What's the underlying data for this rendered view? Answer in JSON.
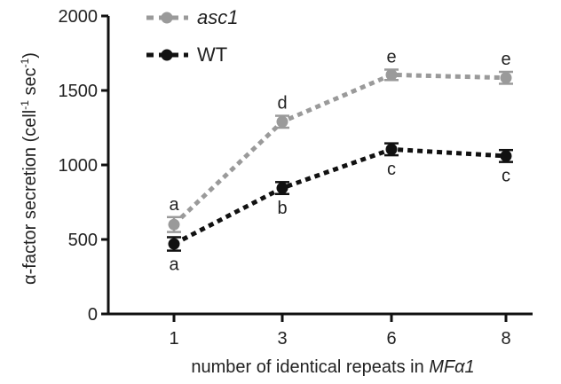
{
  "chart_data": {
    "type": "line",
    "categories": [
      "1",
      "3",
      "6",
      "8"
    ],
    "xlabel_prefix": "number of identical repeats in ",
    "xlabel_italic": "MFα1",
    "ylabel_main": "α-factor secretion (cell",
    "ylabel_sup1": "-1",
    "ylabel_mid": " sec",
    "ylabel_sup2": "-1",
    "ylabel_end": ")",
    "ylim": [
      0,
      2000
    ],
    "yticks": [
      "0",
      "500",
      "1000",
      "1500",
      "2000"
    ],
    "grid": false,
    "legend_position": "top-left",
    "series": [
      {
        "name": "asc1",
        "italic": true,
        "color": "#9a9a9a",
        "values": [
          600,
          1290,
          1605,
          1585
        ],
        "errors": [
          50,
          40,
          35,
          40
        ],
        "letters": [
          "a",
          "d",
          "e",
          "e"
        ],
        "letter_position": [
          "above",
          "above",
          "above",
          "above"
        ]
      },
      {
        "name": "WT",
        "italic": false,
        "color": "#111111",
        "values": [
          470,
          845,
          1105,
          1060
        ],
        "errors": [
          45,
          40,
          40,
          40
        ],
        "letters": [
          "a",
          "b",
          "c",
          "c"
        ],
        "letter_position": [
          "below",
          "below",
          "below",
          "below"
        ]
      }
    ]
  }
}
